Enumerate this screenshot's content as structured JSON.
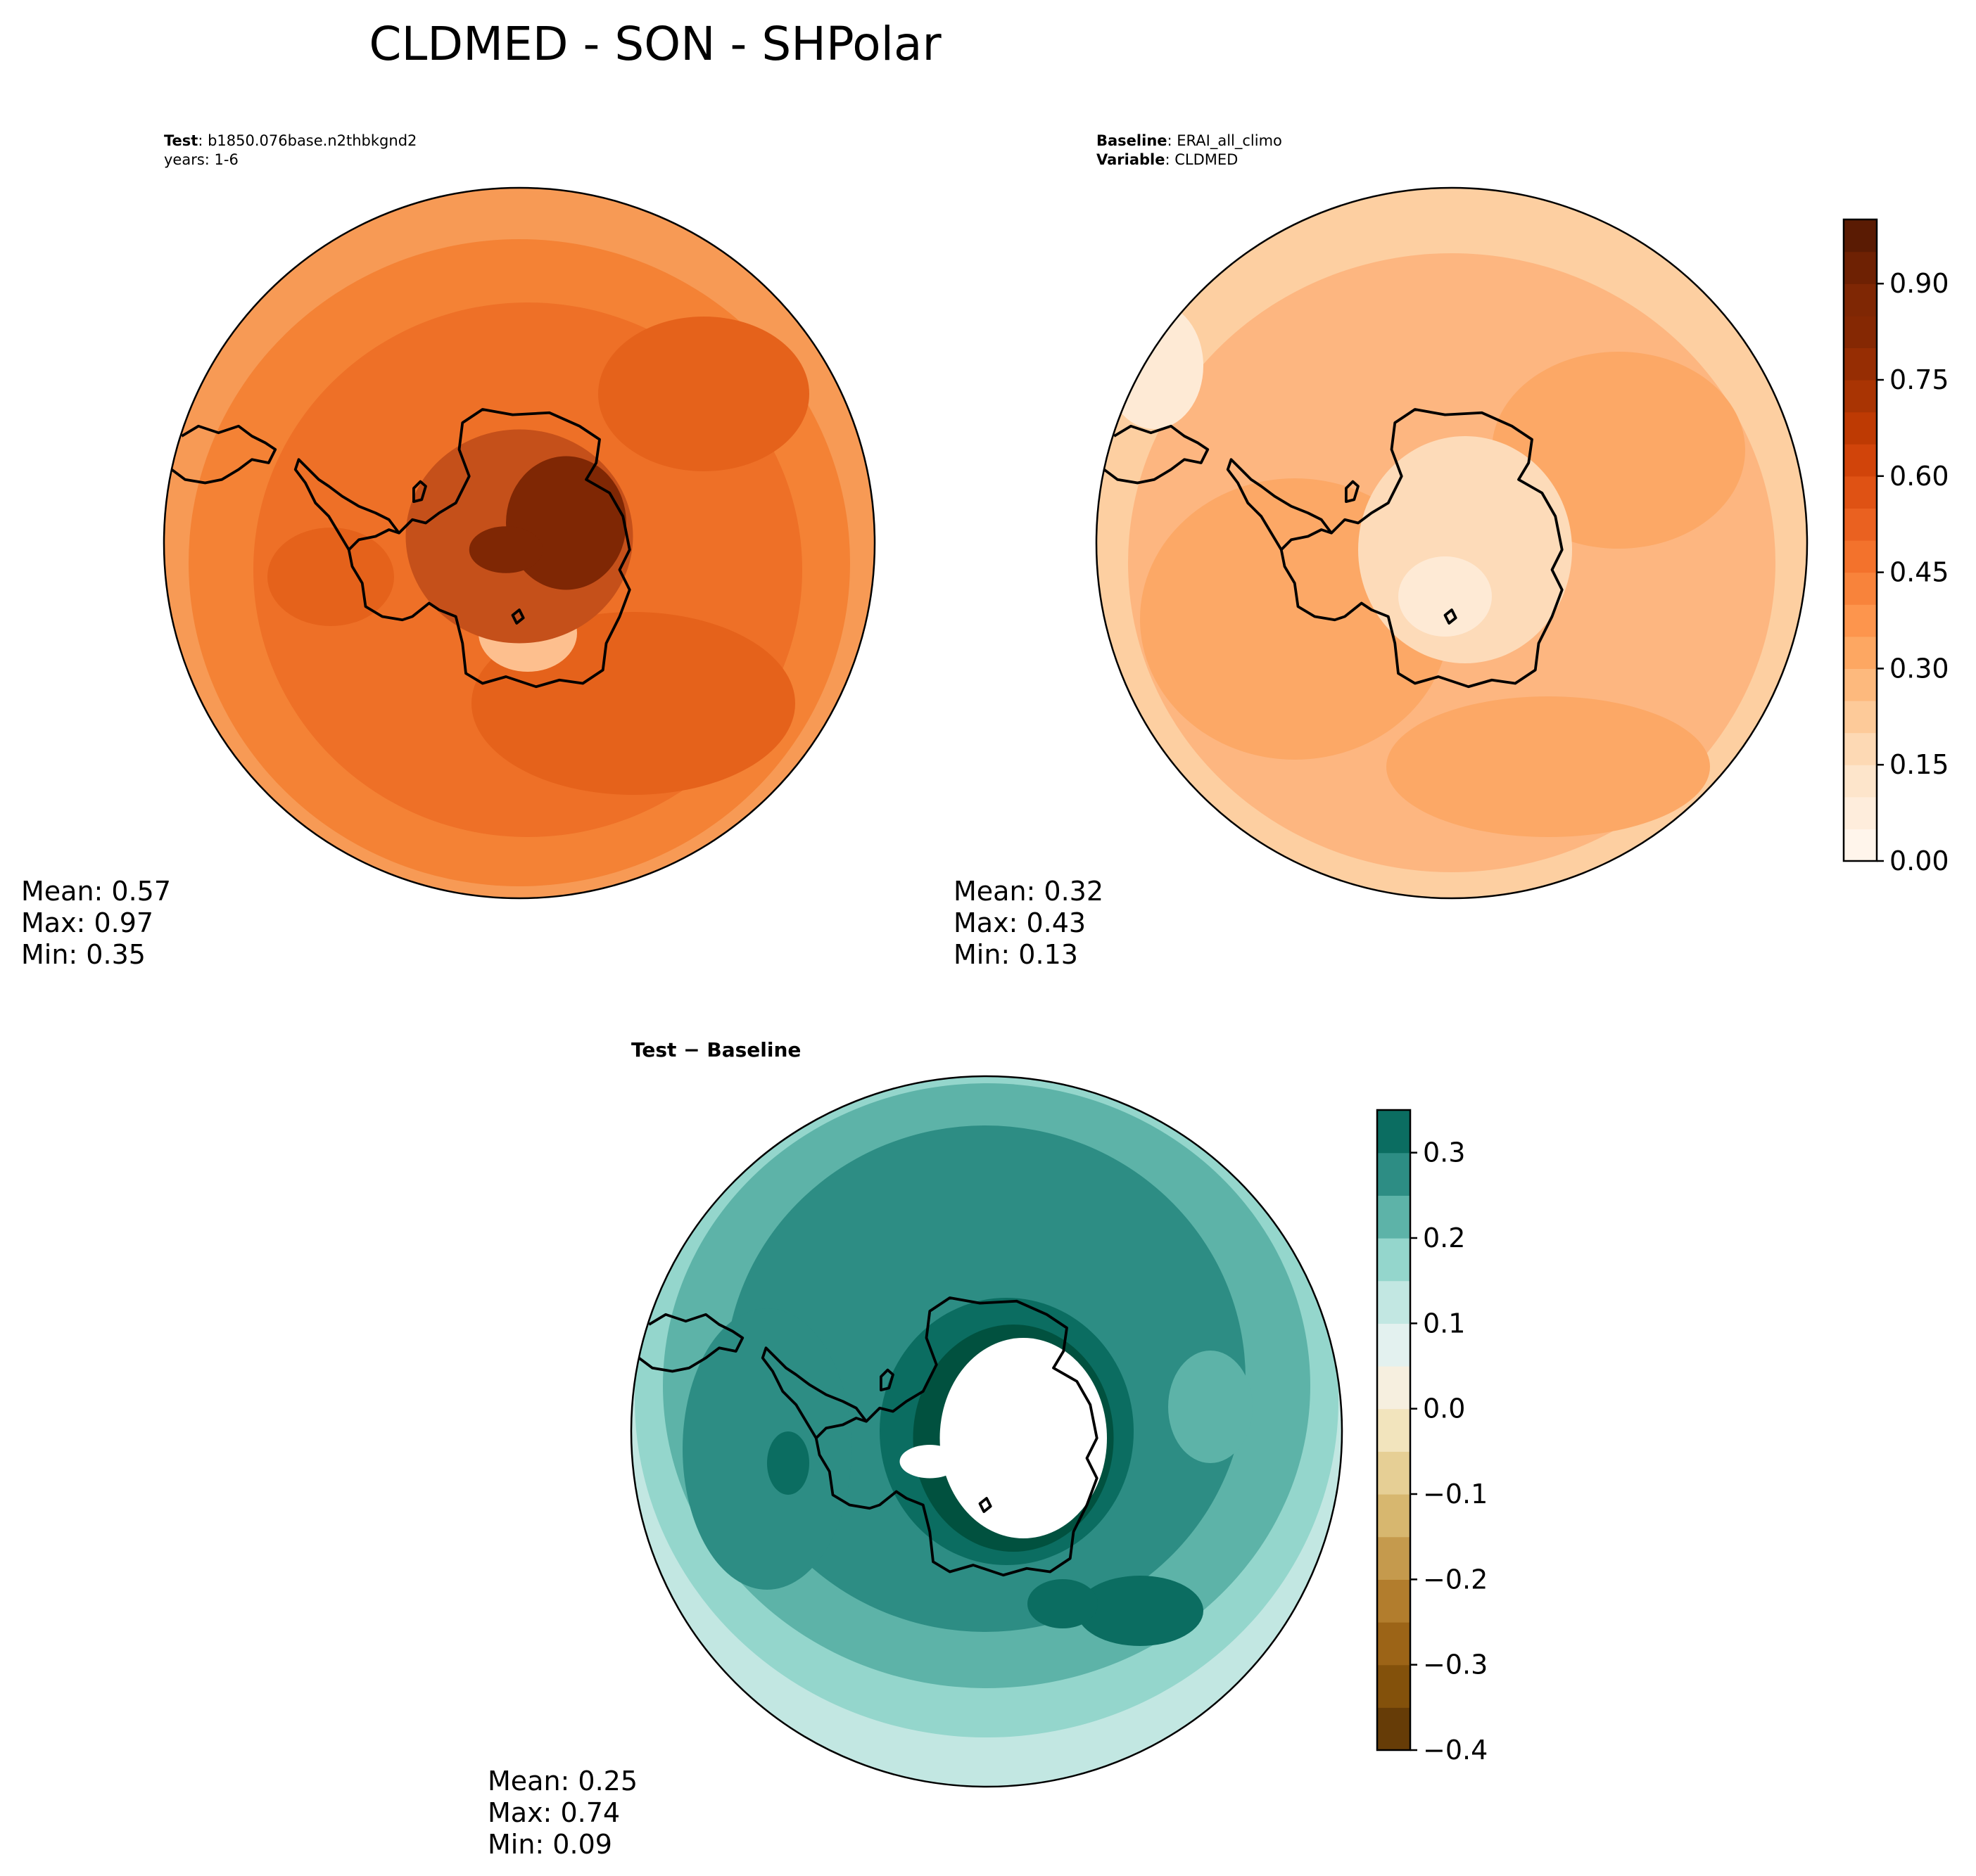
{
  "figure": {
    "title": "CLDMED - SON - SHPolar"
  },
  "panels": {
    "test": {
      "label_bold": "Test",
      "label_text": ": b1850.076base.n2thbkgnd2",
      "years": "years: 1-6",
      "mean": "Mean:  0.57",
      "max": "Max:  0.97",
      "min": "Min:  0.35"
    },
    "baseline": {
      "label_bold": "Baseline",
      "label_text": ": ERAI_all_climo",
      "variable_bold": "Variable",
      "variable_text": ": CLDMED",
      "mean": "Mean:  0.32",
      "max": "Max:  0.43",
      "min": "Min:  0.13"
    },
    "diff": {
      "label": "Test − Baseline",
      "mean": "Mean:  0.25",
      "max": "Max:  0.74",
      "min": "Min:  0.09"
    }
  },
  "colorbars": {
    "main": {
      "colormap": "Oranges",
      "range": [
        0.0,
        1.0
      ],
      "ticks": [
        "0.00",
        "0.15",
        "0.30",
        "0.45",
        "0.60",
        "0.75",
        "0.90"
      ],
      "tick_values": [
        0.0,
        0.15,
        0.3,
        0.45,
        0.6,
        0.75,
        0.9
      ],
      "levels": 20,
      "colors": [
        "#fff5eb",
        "#feeddc",
        "#fde5cb",
        "#fdd9b4",
        "#fdca99",
        "#fdb97d",
        "#fda762",
        "#fd954d",
        "#f8833b",
        "#f3722c",
        "#ea6120",
        "#df5214",
        "#d1440a",
        "#be3a03",
        "#a93403",
        "#962d03",
        "#852803",
        "#7f2704",
        "#6e2103",
        "#5a1b03"
      ]
    },
    "diff": {
      "colormap": "BrBG",
      "range": [
        -0.4,
        0.35
      ],
      "ticks": [
        "−0.4",
        "−0.3",
        "−0.2",
        "−0.1",
        "0.0",
        "0.1",
        "0.2",
        "0.3"
      ],
      "tick_values": [
        -0.4,
        -0.3,
        -0.2,
        -0.1,
        0.0,
        0.1,
        0.2,
        0.3
      ],
      "levels_bottom_to_top": [
        -0.4,
        -0.35,
        -0.3,
        -0.25,
        -0.2,
        -0.15,
        -0.1,
        -0.05,
        0.0,
        0.05,
        0.1,
        0.15,
        0.2,
        0.25,
        0.3,
        0.35
      ],
      "colors": [
        "#663c07",
        "#83510b",
        "#9c6417",
        "#b27d2d",
        "#c59a4d",
        "#d7b76f",
        "#e6cf95",
        "#f2e4bd",
        "#f6efdf",
        "#e3f1ef",
        "#c2e7e2",
        "#94d6cc",
        "#5db3a8",
        "#2d8d84",
        "#0b6d61",
        "#01513f"
      ]
    }
  },
  "map": {
    "projection": "south-polar-stereographic",
    "coastline_color": "#000000",
    "test_palette": {
      "outer": "#f79a55",
      "ring": "#f48235",
      "mid": "#ee7027",
      "core": "#e5621b",
      "ice": "#c5501a",
      "peak": "#7f2704",
      "shelf": "#fdbf8e"
    },
    "baseline_palette": {
      "outer": "#fdcfa1",
      "ring": "#fdb680",
      "mid": "#fca866",
      "ice": "#fddbb9",
      "pale": "#feead5"
    },
    "diff_palette": {
      "outer": "#c2e7e2",
      "ring": "#94d6cc",
      "mid": "#5db3a8",
      "core": "#2d8d84",
      "strong": "#0b6d61",
      "peak": "#01513f",
      "missing": "#ffffff"
    }
  }
}
